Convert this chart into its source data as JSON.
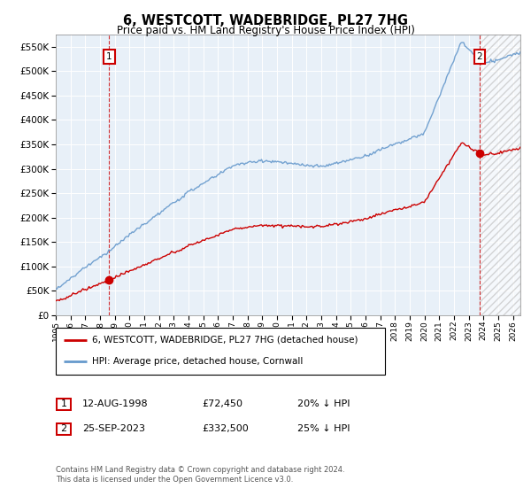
{
  "title": "6, WESTCOTT, WADEBRIDGE, PL27 7HG",
  "subtitle": "Price paid vs. HM Land Registry's House Price Index (HPI)",
  "legend_line1": "6, WESTCOTT, WADEBRIDGE, PL27 7HG (detached house)",
  "legend_line2": "HPI: Average price, detached house, Cornwall",
  "table_row1_date": "12-AUG-1998",
  "table_row1_price": "£72,450",
  "table_row1_hpi": "20% ↓ HPI",
  "table_row2_date": "25-SEP-2023",
  "table_row2_price": "£332,500",
  "table_row2_hpi": "25% ↓ HPI",
  "footnote": "Contains HM Land Registry data © Crown copyright and database right 2024.\nThis data is licensed under the Open Government Licence v3.0.",
  "red_color": "#cc0000",
  "blue_color": "#6699cc",
  "grid_color": "#ccddee",
  "plot_bg": "#e8f0f8",
  "hatch_color": "#aaaaaa",
  "sale1_year": 1998.617,
  "sale1_price": 72450,
  "sale2_year": 2023.729,
  "sale2_price": 332500,
  "ylim": [
    0,
    575000
  ],
  "xlim_start": 1995.0,
  "xlim_end": 2026.5
}
